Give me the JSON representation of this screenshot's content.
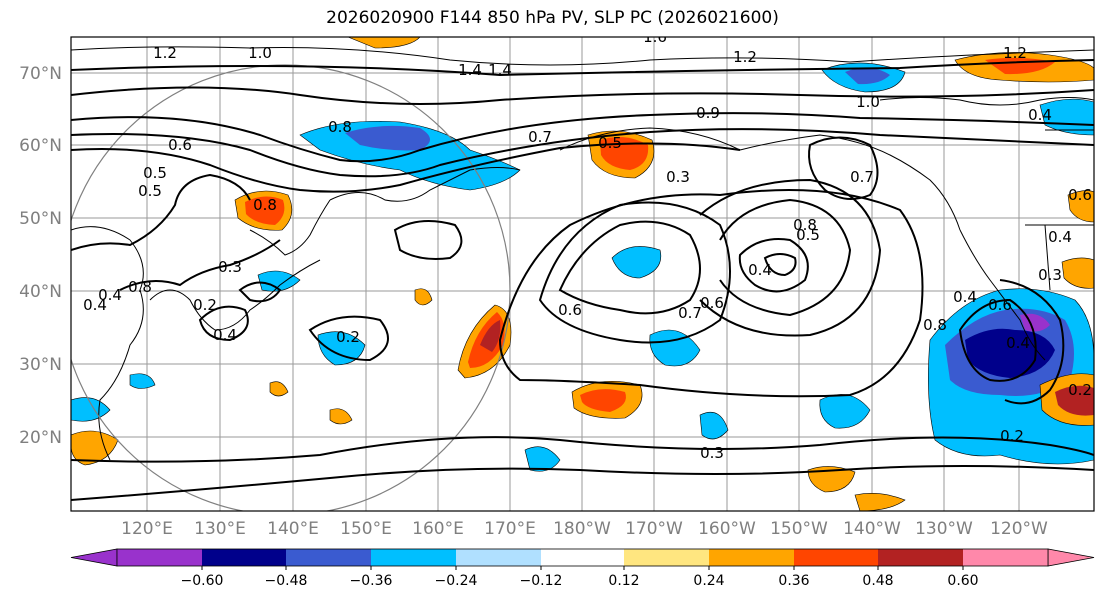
{
  "title": "2026020900 F144 850 hPa PV, SLP PC (2026021600)",
  "latitude_labels": [
    "70°N",
    "60°N",
    "50°N",
    "40°N",
    "30°N",
    "20°N"
  ],
  "longitude_labels": [
    "120°E",
    "130°E",
    "140°E",
    "150°E",
    "160°E",
    "170°E",
    "180°W",
    "170°W",
    "160°W",
    "150°W",
    "140°W",
    "130°W",
    "120°W"
  ],
  "colorbar": {
    "ticks": [
      "−0.60",
      "−0.48",
      "−0.36",
      "−0.24",
      "−0.12",
      "0.12",
      "0.24",
      "0.36",
      "0.48",
      "0.60"
    ],
    "colors": [
      "#9932cc",
      "#00008b",
      "#3a5bd0",
      "#00bfff",
      "#b0e0ff",
      "#ffffff",
      "#ffe680",
      "#ffa500",
      "#ff4500",
      "#b22222",
      "#ff88aa"
    ],
    "extend": "both"
  },
  "contour_labels": [
    "1.2",
    "1.0",
    "1.6",
    "1.2",
    "1.2",
    "1.4",
    "1.4",
    "1.0",
    "0.8",
    "0.9",
    "0.7",
    "0.5",
    "0.8",
    "0.6",
    "0.5",
    "0.5",
    "0.3",
    "0.7",
    "0.8",
    "0.5",
    "0.4",
    "0.6",
    "0.7",
    "0.6",
    "0.4",
    "0.2",
    "0.4",
    "0.4",
    "0.2",
    "0.3",
    "0.8",
    "0.3",
    "0.2",
    "0.4",
    "0.4",
    "0.3",
    "0.2",
    "0.4",
    "0.4",
    "0.6",
    "0.6",
    "0.8"
  ],
  "map": {
    "projection": "equirectangular",
    "lon_range": [
      "~112°E",
      "~113°W"
    ],
    "lat_range": [
      "~10°N",
      "~75°N"
    ],
    "features": [
      "coastlines",
      "lat/lon grid",
      "850 hPa PV anomaly (filled)",
      "SLP PC (contours)",
      "range ring circle"
    ]
  }
}
